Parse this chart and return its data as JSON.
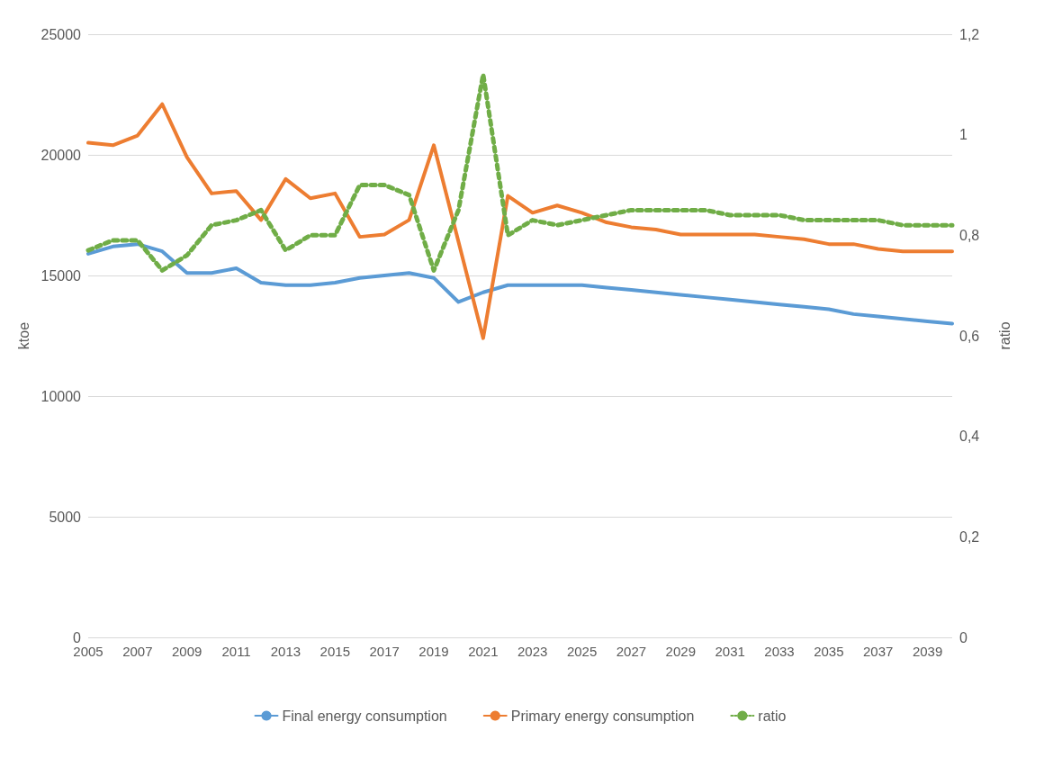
{
  "chart_data": {
    "type": "line",
    "xlabel": null,
    "ylabel": "ktoe",
    "y2label": "ratio",
    "categories": [
      "2005",
      null,
      "2007",
      null,
      "2009",
      null,
      "2011",
      null,
      "2013",
      null,
      "2015",
      null,
      "2017",
      null,
      "2019",
      null,
      "2021",
      null,
      "2023",
      null,
      "2025",
      null,
      "2027",
      null,
      "2029",
      null,
      "2031",
      null,
      "2033",
      null,
      "2035",
      null,
      "2037",
      null,
      "2039",
      null
    ],
    "series": [
      {
        "name": "Final energy consumption",
        "color": "#5b9bd5",
        "line_style": "solid",
        "values": [
          15900,
          16200,
          16300,
          16000,
          15100,
          15100,
          15300,
          14700,
          14600,
          14600,
          14700,
          14900,
          15000,
          15100,
          14900,
          13900,
          14300,
          14600,
          14600,
          14600,
          14600,
          14500,
          14400,
          14300,
          14200,
          14100,
          14000,
          13900,
          13800,
          13700,
          13600,
          13400,
          13300,
          13200,
          13100,
          13000
        ]
      },
      {
        "name": "Primary energy consumption",
        "color": "#ed7d31",
        "line_style": "solid",
        "values": [
          20500,
          20400,
          20800,
          22100,
          19900,
          18400,
          18500,
          17300,
          19000,
          18200,
          18400,
          16600,
          16700,
          17300,
          20400,
          16400,
          12400,
          18300,
          17600,
          17900,
          17600,
          17200,
          17000,
          16900,
          16700,
          16700,
          16700,
          16700,
          16600,
          16500,
          16300,
          16300,
          16100,
          16000,
          16000,
          16000
        ]
      },
      {
        "name": "ratio",
        "color": "#70ad47",
        "line_style": "dotted",
        "axis": "y2",
        "values": [
          0.77,
          0.79,
          0.79,
          0.73,
          0.76,
          0.82,
          0.83,
          0.85,
          0.77,
          0.8,
          0.8,
          0.9,
          0.9,
          0.88,
          0.73,
          0.85,
          1.12,
          0.8,
          0.83,
          0.82,
          0.83,
          0.84,
          0.85,
          0.85,
          0.85,
          0.85,
          0.84,
          0.84,
          0.84,
          0.83,
          0.83,
          0.83,
          0.83,
          0.82,
          0.82,
          0.82
        ]
      }
    ],
    "ylim": [
      0,
      25000
    ],
    "yticks": [
      0,
      5000,
      10000,
      15000,
      20000,
      25000
    ],
    "y2lim": [
      0,
      1.2
    ],
    "y2ticks": [
      0,
      {
        "value": 0.2,
        "label": "0,2"
      },
      {
        "value": 0.4,
        "label": "0,4"
      },
      {
        "value": 0.6,
        "label": "0,6"
      },
      {
        "value": 0.8,
        "label": "0,8"
      },
      1,
      {
        "value": 1.2,
        "label": "1,2"
      }
    ],
    "grid": "y",
    "legend": "bottom",
    "marker": "none"
  }
}
